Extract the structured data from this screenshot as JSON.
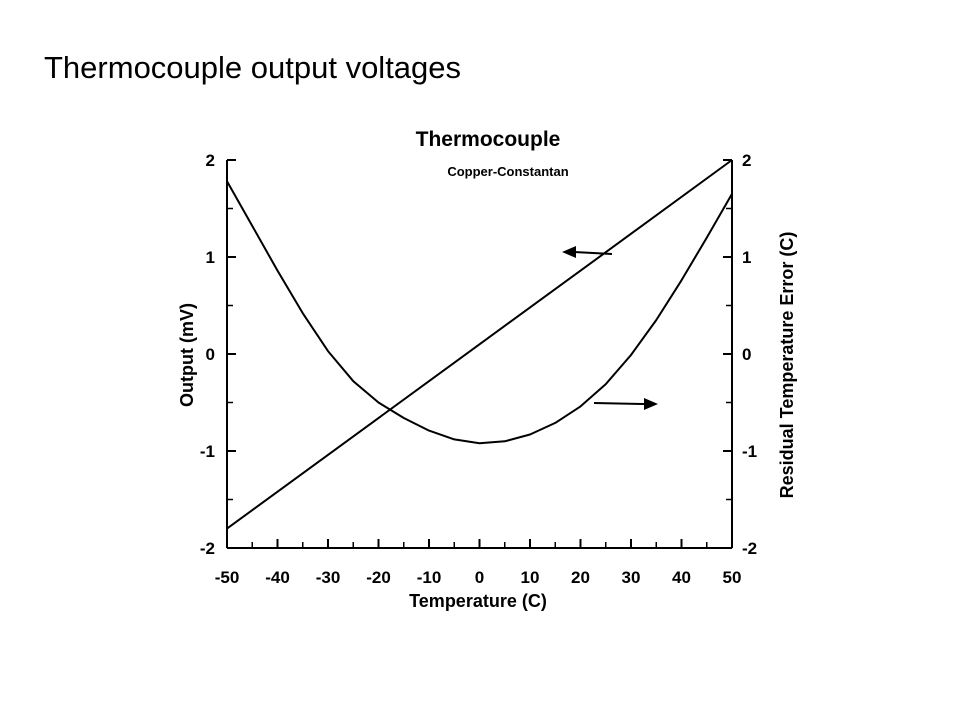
{
  "slide": {
    "title": "Thermocouple output voltages"
  },
  "chart_data": {
    "type": "line",
    "title": "Thermocouple",
    "subtitle": "Copper-Constantan",
    "xlabel": "Temperature (C)",
    "ylabel": "Output (mV)",
    "y2label": "Residual Temperature Error (C)",
    "xlim": [
      -50,
      50
    ],
    "ylim": [
      -2,
      2
    ],
    "y2lim": [
      -2,
      2
    ],
    "x_ticks": [
      -50,
      -40,
      -30,
      -20,
      -10,
      0,
      10,
      20,
      30,
      40,
      50
    ],
    "x_tick_labels": [
      "-50",
      "-40",
      "-30",
      "-20",
      "-10",
      "0",
      "10",
      "20",
      "30",
      "40",
      "50"
    ],
    "y_ticks": [
      -2,
      -1,
      0,
      1,
      2
    ],
    "y_tick_labels": [
      "-2",
      "-1",
      "0",
      "1",
      "2"
    ],
    "y2_ticks": [
      -2,
      -1,
      0,
      1,
      2
    ],
    "y2_tick_labels": [
      "-2",
      "-1",
      "0",
      "1",
      "2"
    ],
    "grid": false,
    "series": [
      {
        "axis": "left",
        "x": [
          -50,
          -25,
          0,
          25,
          50
        ],
        "y": [
          -1.8,
          -0.85,
          0.1,
          1.05,
          2.0
        ]
      },
      {
        "axis": "right",
        "x": [
          -50,
          -45,
          -40,
          -35,
          -30,
          -25,
          -20,
          -15,
          -10,
          -5,
          0,
          5,
          10,
          15,
          20,
          25,
          30,
          35,
          40,
          45,
          50
        ],
        "y": [
          1.78,
          1.32,
          0.86,
          0.42,
          0.03,
          -0.28,
          -0.5,
          -0.66,
          -0.79,
          -0.88,
          -0.92,
          -0.9,
          -0.83,
          -0.71,
          -0.54,
          -0.31,
          -0.01,
          0.35,
          0.76,
          1.2,
          1.65
        ]
      }
    ]
  }
}
